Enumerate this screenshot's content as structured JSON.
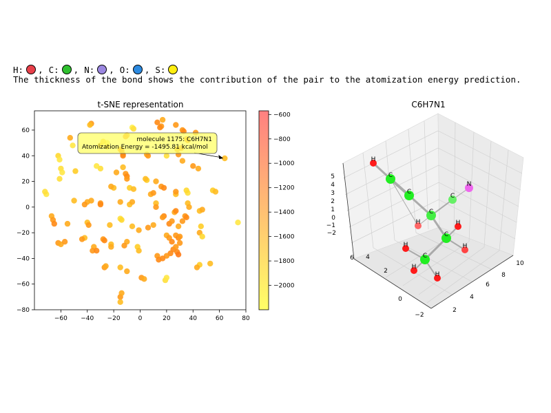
{
  "legend": {
    "items": [
      {
        "symbol": "H:",
        "color": "#e8404a"
      },
      {
        "symbol": "C:",
        "color": "#2fc02f"
      },
      {
        "symbol": "N:",
        "color": "#9b87e0"
      },
      {
        "symbol": "O:",
        "color": "#2c8ae0"
      },
      {
        "symbol": "S:",
        "color": "#ffee10"
      }
    ]
  },
  "caption": "The thickness of the bond shows the contribution of the pair to the atomization energy prediction.",
  "chart_data": [
    {
      "type": "scatter",
      "title": "t-SNE representation",
      "xlim": [
        -80,
        80
      ],
      "ylim": [
        -80,
        75
      ],
      "xticks": [
        -60,
        -40,
        -20,
        0,
        20,
        40,
        60,
        80
      ],
      "yticks": [
        -80,
        -60,
        -40,
        -20,
        0,
        20,
        40,
        60
      ],
      "colorbar": {
        "range": [
          -2200,
          -570
        ],
        "ticks": [
          -600,
          -800,
          -1000,
          -1200,
          -1400,
          -1600,
          -1800,
          -2000
        ],
        "color_high": "#ff8080",
        "color_low": "#ffff66"
      },
      "annotation": {
        "line1": "molecule 1175: C6H7N1",
        "line2": "Atomization Energy = -1495.81 kcal/mol",
        "target": [
          64,
          38
        ]
      },
      "points": [
        [
          -37,
          65,
          -1300
        ],
        [
          -38,
          64,
          -1500
        ],
        [
          -6,
          62,
          -2000
        ],
        [
          -5,
          61,
          -1800
        ],
        [
          -10,
          56,
          -1400
        ],
        [
          -11,
          55,
          -1300
        ],
        [
          -53,
          54,
          -1400
        ],
        [
          -25,
          50,
          -1900
        ],
        [
          -25,
          47,
          -1500
        ],
        [
          -15,
          45,
          -1300
        ],
        [
          -14,
          44,
          -1200
        ],
        [
          -13,
          41,
          -1300
        ],
        [
          -13,
          40,
          -1200
        ],
        [
          5,
          41,
          -1400
        ],
        [
          6,
          40,
          -1300
        ],
        [
          20,
          40,
          -1800
        ],
        [
          16,
          63,
          -1300
        ],
        [
          15,
          62,
          -1200
        ],
        [
          13,
          66,
          -1200
        ],
        [
          17,
          68,
          -1400
        ],
        [
          32,
          60,
          -1300
        ],
        [
          33,
          59,
          -1200
        ],
        [
          27,
          64,
          -1300
        ],
        [
          35,
          53,
          -1400
        ],
        [
          36,
          52,
          -1300
        ],
        [
          42,
          58,
          -1300
        ],
        [
          28,
          45,
          -1400
        ],
        [
          31,
          46,
          -1300
        ],
        [
          29,
          41,
          -1300
        ],
        [
          32,
          36,
          -1400
        ],
        [
          40,
          32,
          -1300
        ],
        [
          44,
          30,
          -1400
        ],
        [
          -51,
          48,
          -1900
        ],
        [
          -60,
          30,
          -1800
        ],
        [
          -59,
          27,
          -1900
        ],
        [
          -62,
          40,
          -1700
        ],
        [
          -61,
          37,
          -1900
        ],
        [
          -61,
          22,
          -1800
        ],
        [
          -49,
          28,
          -1600
        ],
        [
          -30,
          30,
          -1800
        ],
        [
          -33,
          32,
          -1900
        ],
        [
          -13,
          31,
          -1500
        ],
        [
          -11,
          26,
          -1300
        ],
        [
          -10,
          24,
          -1200
        ],
        [
          -10,
          22,
          -1300
        ],
        [
          -18,
          27,
          -1400
        ],
        [
          5,
          21,
          -1600
        ],
        [
          4,
          22,
          -1500
        ],
        [
          -71,
          10,
          -1900
        ],
        [
          -72,
          12,
          -1800
        ],
        [
          -50,
          5,
          -1500
        ],
        [
          -40,
          4,
          -1400
        ],
        [
          -42,
          2,
          -1300
        ],
        [
          -37,
          5,
          -1400
        ],
        [
          -30,
          3,
          -1300
        ],
        [
          -30,
          2,
          -1200
        ],
        [
          -20,
          15,
          -1500
        ],
        [
          -22,
          16,
          -1400
        ],
        [
          -8,
          15,
          -1600
        ],
        [
          -5,
          14,
          -1500
        ],
        [
          12,
          20,
          -1400
        ],
        [
          16,
          16,
          -1300
        ],
        [
          18,
          15,
          -1200
        ],
        [
          8,
          10,
          -1400
        ],
        [
          10,
          11,
          -1300
        ],
        [
          27,
          10,
          -1500
        ],
        [
          27,
          12,
          -1300
        ],
        [
          36,
          11,
          -1800
        ],
        [
          35,
          13,
          -1700
        ],
        [
          55,
          13,
          -1600
        ],
        [
          57,
          12,
          -1500
        ],
        [
          -15,
          4,
          -1400
        ],
        [
          -8,
          2,
          -1500
        ],
        [
          -6,
          4,
          -1400
        ],
        [
          12,
          3,
          -1500
        ],
        [
          12,
          0,
          -1300
        ],
        [
          26,
          -4,
          -1400
        ],
        [
          27,
          -3,
          -1200
        ],
        [
          36,
          3,
          -1500
        ],
        [
          37,
          0,
          -1400
        ],
        [
          34,
          -7,
          -1300
        ],
        [
          35,
          -8,
          -1200
        ],
        [
          -42,
          -24,
          -1500
        ],
        [
          -44,
          -25,
          -1300
        ],
        [
          -67,
          -7,
          -1400
        ],
        [
          -66,
          -10,
          -1300
        ],
        [
          -65,
          -13,
          -1200
        ],
        [
          -55,
          -13,
          -1400
        ],
        [
          -40,
          -12,
          -1500
        ],
        [
          -39,
          -14,
          -1300
        ],
        [
          -23,
          -14,
          -1500
        ],
        [
          -15,
          -9,
          -1800
        ],
        [
          -14,
          -10,
          -1700
        ],
        [
          -6,
          -15,
          -1500
        ],
        [
          -1,
          -18,
          -1400
        ],
        [
          6,
          -16,
          -1300
        ],
        [
          10,
          -14,
          -1400
        ],
        [
          18,
          -7,
          -1200
        ],
        [
          17,
          -8,
          -1300
        ],
        [
          22,
          -13,
          -1200
        ],
        [
          24,
          -11,
          -1300
        ],
        [
          29,
          -15,
          -1400
        ],
        [
          32,
          -11,
          -1300
        ],
        [
          45,
          -3,
          -1500
        ],
        [
          47,
          -2,
          -1400
        ],
        [
          46,
          -15,
          -1600
        ],
        [
          45,
          -20,
          -1400
        ],
        [
          47,
          -23,
          -1700
        ],
        [
          -62,
          -28,
          -1300
        ],
        [
          -60,
          -29,
          -1400
        ],
        [
          -57,
          -27,
          -1300
        ],
        [
          -28,
          -25,
          -1300
        ],
        [
          -27,
          -26,
          -1200
        ],
        [
          -10,
          -27,
          -1400
        ],
        [
          -35,
          -31,
          -1400
        ],
        [
          -36,
          -34,
          -1300
        ],
        [
          -33,
          -34,
          -1200
        ],
        [
          -22,
          -29,
          -1500
        ],
        [
          -22,
          -31,
          -1400
        ],
        [
          -2,
          -31,
          -1600
        ],
        [
          -1,
          -34,
          -1500
        ],
        [
          -12,
          -30,
          -1300
        ],
        [
          20,
          -22,
          -1400
        ],
        [
          22,
          -24,
          -1300
        ],
        [
          24,
          -27,
          -1200
        ],
        [
          27,
          -22,
          -1300
        ],
        [
          29,
          -24,
          -1200
        ],
        [
          30,
          -28,
          -1300
        ],
        [
          25,
          -33,
          -1200
        ],
        [
          27,
          -31,
          -1300
        ],
        [
          28,
          -35,
          -1200
        ],
        [
          29,
          -37,
          -1100
        ],
        [
          23,
          -36,
          -1200
        ],
        [
          20,
          -38,
          -1300
        ],
        [
          17,
          -40,
          -1200
        ],
        [
          13,
          -38,
          -1300
        ],
        [
          14,
          -41,
          -1200
        ],
        [
          30,
          -23,
          -1300
        ],
        [
          45,
          -45,
          -1600
        ],
        [
          43,
          -47,
          -1400
        ],
        [
          53,
          -44,
          -1500
        ],
        [
          -27,
          -47,
          -1300
        ],
        [
          -26,
          -46,
          -1400
        ],
        [
          -15,
          -47,
          -1500
        ],
        [
          -10,
          -50,
          -1400
        ],
        [
          1,
          -55,
          -1300
        ],
        [
          3,
          -56,
          -1400
        ],
        [
          19,
          -57,
          -1800
        ],
        [
          20,
          -55,
          -1900
        ],
        [
          -15,
          -70,
          -1300
        ],
        [
          -14,
          -67,
          -1400
        ],
        [
          -15,
          -74,
          -1500
        ],
        [
          74,
          -12,
          -1900
        ],
        [
          64,
          38,
          -1500
        ],
        [
          -30,
          48,
          -1500
        ],
        [
          -28,
          51,
          -1600
        ]
      ]
    },
    {
      "type": "scatter3d",
      "title": "C6H7N1",
      "x_ticks": [
        2,
        4,
        6,
        8,
        10
      ],
      "y_ticks": [
        -2,
        0,
        2,
        4,
        6
      ],
      "z_ticks": [
        -2,
        -1,
        0,
        1,
        2,
        3,
        4,
        5
      ],
      "atoms": [
        {
          "label": "H",
          "color": "#ff1a1a",
          "sx": 542,
          "sy": 237,
          "r": 5
        },
        {
          "label": "C",
          "color": "#22ee22",
          "sx": 567,
          "sy": 260,
          "r": 7
        },
        {
          "label": "C",
          "color": "#22ee22",
          "sx": 594,
          "sy": 284,
          "r": 7
        },
        {
          "label": "N",
          "color": "#ee66ee",
          "sx": 681,
          "sy": 273,
          "r": 6
        },
        {
          "label": "C",
          "color": "#66f066",
          "sx": 657,
          "sy": 290,
          "r": 6
        },
        {
          "label": "C",
          "color": "#44ee44",
          "sx": 626,
          "sy": 313,
          "r": 7
        },
        {
          "label": "H",
          "color": "#ff6666",
          "sx": 607,
          "sy": 328,
          "r": 5
        },
        {
          "label": "H",
          "color": "#ff1a1a",
          "sx": 665,
          "sy": 329,
          "r": 5
        },
        {
          "label": "C",
          "color": "#22ee22",
          "sx": 648,
          "sy": 346,
          "r": 7
        },
        {
          "label": "H",
          "color": "#ff1a1a",
          "sx": 589,
          "sy": 361,
          "r": 5
        },
        {
          "label": "H",
          "color": "#ff4444",
          "sx": 675,
          "sy": 363,
          "r": 5
        },
        {
          "label": "C",
          "color": "#22ee22",
          "sx": 617,
          "sy": 377,
          "r": 7
        },
        {
          "label": "H",
          "color": "#ff1a1a",
          "sx": 601,
          "sy": 393,
          "r": 5
        },
        {
          "label": "H",
          "color": "#ff1a1a",
          "sx": 635,
          "sy": 404,
          "r": 5
        }
      ],
      "bonds": [
        [
          0,
          1,
          3
        ],
        [
          1,
          2,
          4
        ],
        [
          2,
          5,
          3
        ],
        [
          4,
          5,
          2
        ],
        [
          4,
          3,
          1
        ],
        [
          5,
          6,
          1
        ],
        [
          5,
          8,
          3
        ],
        [
          8,
          7,
          2
        ],
        [
          8,
          11,
          3
        ],
        [
          11,
          9,
          2
        ],
        [
          11,
          12,
          2
        ],
        [
          11,
          13,
          2
        ],
        [
          8,
          10,
          2
        ],
        [
          1,
          6,
          1
        ]
      ]
    }
  ]
}
